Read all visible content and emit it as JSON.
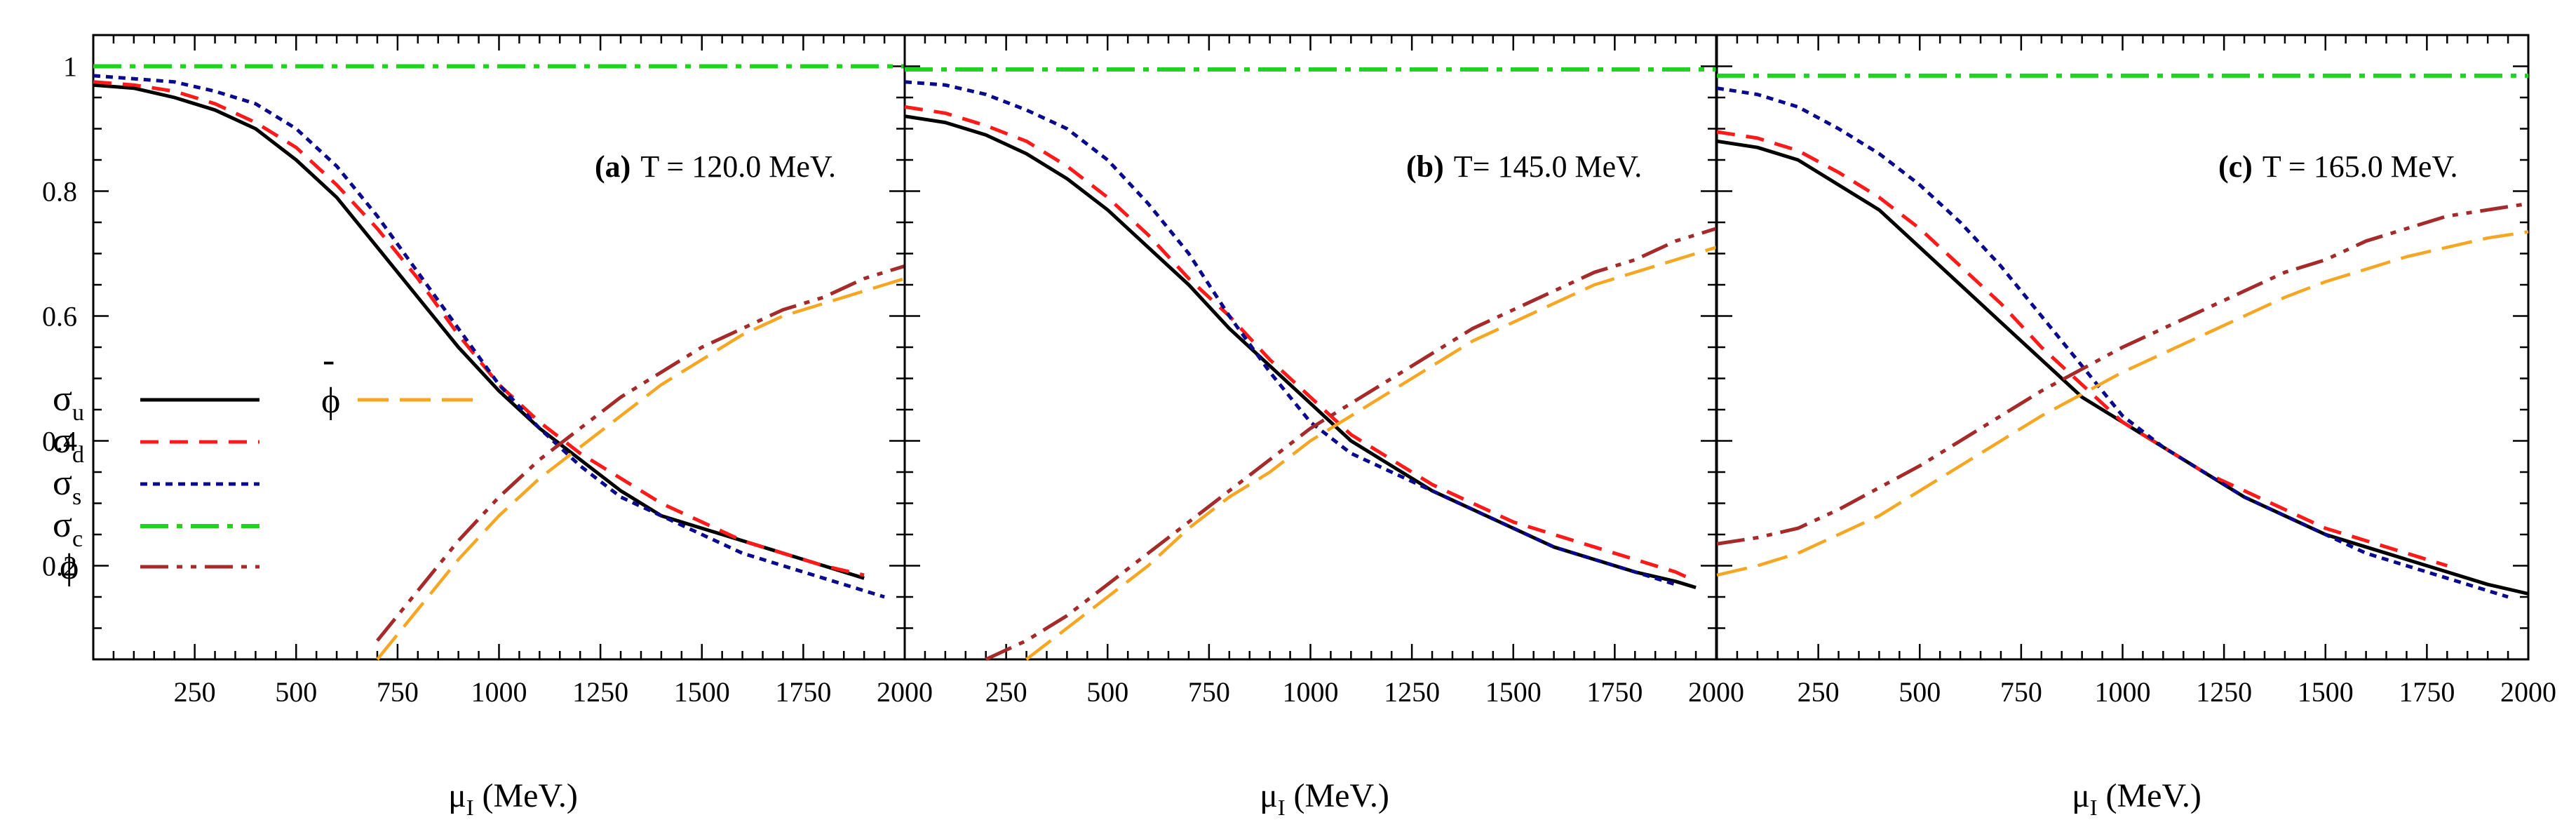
{
  "chart_data": [
    {
      "type": "line",
      "panel": "a",
      "annotation_bold": "(a)",
      "annotation_text": "T = 120.0 MeV.",
      "xlabel": "μ",
      "xlabel_sub": "I",
      "xlabel_unit": " (MeV.)",
      "xlim": [
        0,
        2000
      ],
      "ylim": [
        0.05,
        1.05
      ],
      "xticks": [
        250,
        500,
        750,
        1000,
        1250,
        1500,
        1750,
        2000
      ],
      "xtick_labels": [
        "250",
        "500",
        "750",
        "1000",
        "1250",
        "1500",
        "1750",
        "2000"
      ],
      "yticks": [
        0.2,
        0.4,
        0.6,
        0.8,
        1.0
      ],
      "ytick_labels": [
        "0.2",
        "0.4",
        "0.6",
        "0.8",
        "1"
      ],
      "series": [
        {
          "key": "sigma_u",
          "x": [
            0,
            100,
            200,
            300,
            400,
            500,
            600,
            700,
            800,
            900,
            1000,
            1100,
            1200,
            1300,
            1400,
            1500,
            1600,
            1700,
            1800,
            1900
          ],
          "y": [
            0.97,
            0.965,
            0.95,
            0.93,
            0.9,
            0.85,
            0.79,
            0.71,
            0.63,
            0.55,
            0.48,
            0.42,
            0.37,
            0.32,
            0.28,
            0.26,
            0.24,
            0.22,
            0.2,
            0.18
          ]
        },
        {
          "key": "sigma_d",
          "x": [
            0,
            100,
            200,
            300,
            400,
            500,
            600,
            700,
            800,
            900,
            1000,
            1100,
            1200,
            1300,
            1400,
            1500,
            1600,
            1700,
            1800,
            1900
          ],
          "y": [
            0.975,
            0.97,
            0.96,
            0.94,
            0.91,
            0.87,
            0.81,
            0.74,
            0.66,
            0.57,
            0.49,
            0.43,
            0.38,
            0.34,
            0.3,
            0.27,
            0.24,
            0.22,
            0.2,
            0.185
          ]
        },
        {
          "key": "sigma_s",
          "x": [
            0,
            100,
            200,
            300,
            400,
            500,
            600,
            700,
            800,
            900,
            1000,
            1100,
            1200,
            1300,
            1400,
            1500,
            1600,
            1700,
            1800,
            1900,
            1950
          ],
          "y": [
            0.985,
            0.98,
            0.975,
            0.96,
            0.94,
            0.9,
            0.84,
            0.76,
            0.67,
            0.58,
            0.49,
            0.42,
            0.36,
            0.31,
            0.28,
            0.25,
            0.22,
            0.2,
            0.18,
            0.16,
            0.15
          ]
        },
        {
          "key": "sigma_c",
          "x": [
            0,
            2000
          ],
          "y": [
            1.0,
            1.0
          ]
        },
        {
          "key": "phi",
          "x": [
            700,
            800,
            900,
            1000,
            1100,
            1200,
            1300,
            1400,
            1500,
            1600,
            1700,
            1800,
            1900,
            2000
          ],
          "y": [
            0.08,
            0.16,
            0.24,
            0.31,
            0.37,
            0.42,
            0.47,
            0.51,
            0.55,
            0.58,
            0.61,
            0.63,
            0.66,
            0.68
          ]
        },
        {
          "key": "phibar",
          "x": [
            700,
            800,
            900,
            1000,
            1100,
            1200,
            1300,
            1400,
            1500,
            1600,
            1700,
            1800,
            1900,
            2000
          ],
          "y": [
            0.05,
            0.13,
            0.21,
            0.28,
            0.34,
            0.39,
            0.44,
            0.49,
            0.53,
            0.57,
            0.6,
            0.62,
            0.64,
            0.66
          ]
        }
      ]
    },
    {
      "type": "line",
      "panel": "b",
      "annotation_bold": "(b)",
      "annotation_text": "T= 145.0 MeV.",
      "xlabel": "μ",
      "xlabel_sub": "I",
      "xlabel_unit": " (MeV.)",
      "xlim": [
        0,
        2000
      ],
      "ylim": [
        0.05,
        1.05
      ],
      "xticks": [
        250,
        500,
        750,
        1000,
        1250,
        1500,
        1750,
        2000
      ],
      "xtick_labels": [
        "250",
        "500",
        "750",
        "1000",
        "1250",
        "1500",
        "1750",
        "2000"
      ],
      "yticks": [
        0.2,
        0.4,
        0.6,
        0.8,
        1.0
      ],
      "series": [
        {
          "key": "sigma_u",
          "x": [
            0,
            100,
            200,
            300,
            400,
            500,
            600,
            700,
            800,
            900,
            1000,
            1100,
            1200,
            1300,
            1400,
            1500,
            1600,
            1700,
            1800,
            1900,
            1950
          ],
          "y": [
            0.92,
            0.91,
            0.89,
            0.86,
            0.82,
            0.77,
            0.71,
            0.65,
            0.58,
            0.52,
            0.46,
            0.4,
            0.36,
            0.32,
            0.29,
            0.26,
            0.23,
            0.21,
            0.19,
            0.175,
            0.165
          ]
        },
        {
          "key": "sigma_d",
          "x": [
            0,
            100,
            200,
            300,
            400,
            500,
            600,
            700,
            800,
            900,
            1000,
            1100,
            1200,
            1300,
            1400,
            1500,
            1600,
            1700,
            1800,
            1900,
            1950
          ],
          "y": [
            0.935,
            0.925,
            0.905,
            0.88,
            0.84,
            0.79,
            0.73,
            0.66,
            0.6,
            0.53,
            0.47,
            0.41,
            0.37,
            0.33,
            0.3,
            0.27,
            0.25,
            0.23,
            0.21,
            0.19,
            0.175
          ]
        },
        {
          "key": "sigma_s",
          "x": [
            0,
            100,
            200,
            300,
            400,
            500,
            600,
            700,
            800,
            900,
            1000,
            1100,
            1200,
            1300,
            1400,
            1500,
            1600,
            1700,
            1800,
            1900
          ],
          "y": [
            0.975,
            0.97,
            0.955,
            0.93,
            0.9,
            0.85,
            0.78,
            0.7,
            0.6,
            0.51,
            0.43,
            0.38,
            0.35,
            0.32,
            0.29,
            0.26,
            0.23,
            0.21,
            0.19,
            0.17
          ]
        },
        {
          "key": "sigma_c",
          "x": [
            0,
            2000
          ],
          "y": [
            0.995,
            0.995
          ]
        },
        {
          "key": "phi",
          "x": [
            200,
            300,
            400,
            500,
            600,
            700,
            800,
            900,
            1000,
            1100,
            1200,
            1300,
            1400,
            1500,
            1600,
            1700,
            1800,
            1900,
            2000
          ],
          "y": [
            0.05,
            0.08,
            0.12,
            0.17,
            0.22,
            0.27,
            0.32,
            0.37,
            0.42,
            0.46,
            0.5,
            0.54,
            0.58,
            0.61,
            0.64,
            0.67,
            0.69,
            0.72,
            0.74
          ]
        },
        {
          "key": "phibar",
          "x": [
            300,
            400,
            500,
            600,
            700,
            800,
            900,
            1000,
            1100,
            1200,
            1300,
            1400,
            1500,
            1600,
            1700,
            1800,
            1900,
            2000
          ],
          "y": [
            0.05,
            0.1,
            0.15,
            0.2,
            0.26,
            0.31,
            0.35,
            0.4,
            0.44,
            0.48,
            0.52,
            0.56,
            0.59,
            0.62,
            0.65,
            0.67,
            0.69,
            0.71
          ]
        }
      ]
    },
    {
      "type": "line",
      "panel": "c",
      "annotation_bold": "(c)",
      "annotation_text": "T = 165.0 MeV.",
      "xlabel": "μ",
      "xlabel_sub": "I",
      "xlabel_unit": " (MeV.)",
      "xlim": [
        0,
        2000
      ],
      "ylim": [
        0.05,
        1.05
      ],
      "xticks": [
        250,
        500,
        750,
        1000,
        1250,
        1500,
        1750,
        2000
      ],
      "xtick_labels": [
        "250",
        "500",
        "750",
        "1000",
        "1250",
        "1500",
        "1750",
        "2000"
      ],
      "yticks": [
        0.2,
        0.4,
        0.6,
        0.8,
        1.0
      ],
      "series": [
        {
          "key": "sigma_u",
          "x": [
            0,
            100,
            200,
            300,
            400,
            500,
            600,
            700,
            800,
            900,
            1000,
            1100,
            1200,
            1300,
            1400,
            1500,
            1600,
            1700,
            1800,
            1900,
            2000
          ],
          "y": [
            0.88,
            0.87,
            0.85,
            0.81,
            0.77,
            0.71,
            0.65,
            0.59,
            0.53,
            0.47,
            0.43,
            0.39,
            0.35,
            0.31,
            0.28,
            0.25,
            0.23,
            0.21,
            0.19,
            0.17,
            0.155
          ]
        },
        {
          "key": "sigma_d",
          "x": [
            0,
            100,
            200,
            300,
            400,
            500,
            600,
            700,
            800,
            900,
            1000,
            1100,
            1200,
            1300,
            1400,
            1500,
            1600,
            1700,
            1800
          ],
          "y": [
            0.895,
            0.885,
            0.865,
            0.83,
            0.79,
            0.74,
            0.68,
            0.62,
            0.55,
            0.49,
            0.43,
            0.39,
            0.35,
            0.32,
            0.29,
            0.26,
            0.24,
            0.22,
            0.2
          ]
        },
        {
          "key": "sigma_s",
          "x": [
            0,
            100,
            200,
            300,
            400,
            500,
            600,
            700,
            800,
            900,
            1000,
            1100,
            1200,
            1300,
            1400,
            1500,
            1600,
            1700,
            1800,
            1900,
            1950
          ],
          "y": [
            0.965,
            0.955,
            0.935,
            0.9,
            0.86,
            0.81,
            0.75,
            0.68,
            0.6,
            0.52,
            0.44,
            0.39,
            0.35,
            0.31,
            0.28,
            0.25,
            0.22,
            0.2,
            0.18,
            0.16,
            0.15
          ]
        },
        {
          "key": "sigma_c",
          "x": [
            0,
            2000
          ],
          "y": [
            0.985,
            0.985
          ]
        },
        {
          "key": "phi",
          "x": [
            0,
            100,
            200,
            300,
            400,
            500,
            600,
            700,
            800,
            900,
            1000,
            1100,
            1200,
            1300,
            1400,
            1500,
            1600,
            1700,
            1800,
            1900,
            2000
          ],
          "y": [
            0.235,
            0.245,
            0.26,
            0.29,
            0.325,
            0.36,
            0.4,
            0.44,
            0.48,
            0.515,
            0.55,
            0.58,
            0.61,
            0.64,
            0.67,
            0.69,
            0.72,
            0.74,
            0.76,
            0.77,
            0.78
          ]
        },
        {
          "key": "phibar",
          "x": [
            0,
            100,
            200,
            300,
            400,
            500,
            600,
            700,
            800,
            900,
            1000,
            1100,
            1200,
            1300,
            1400,
            1500,
            1600,
            1700,
            1800,
            1900,
            2000
          ],
          "y": [
            0.185,
            0.2,
            0.22,
            0.25,
            0.28,
            0.32,
            0.36,
            0.4,
            0.44,
            0.475,
            0.51,
            0.54,
            0.57,
            0.6,
            0.63,
            0.655,
            0.675,
            0.695,
            0.71,
            0.725,
            0.735
          ]
        }
      ]
    }
  ],
  "legend": {
    "items": [
      {
        "key": "sigma_u",
        "symbol": "σ",
        "sub": "u",
        "color": "#000000",
        "dash": ""
      },
      {
        "key": "sigma_d",
        "symbol": "σ",
        "sub": "d",
        "color": "#ff1a1a",
        "dash": "26,16"
      },
      {
        "key": "sigma_s",
        "symbol": "σ",
        "sub": "s",
        "color": "#0a0a8c",
        "dash": "10,8"
      },
      {
        "key": "sigma_c",
        "symbol": "σ",
        "sub": "c",
        "color": "#1fd41f",
        "dash": "40,12,8,12"
      },
      {
        "key": "phi",
        "symbol": "ϕ",
        "sub": "",
        "color": "#a52a2a",
        "dash": "40,12,8,12,8,12"
      },
      {
        "key": "phibar",
        "symbol": "ϕ",
        "sub": "",
        "bar": "-",
        "color": "#f5a623",
        "dash": "44,16"
      }
    ]
  },
  "style": {
    "colors": {
      "sigma_u": "#000000",
      "sigma_d": "#ff1a1a",
      "sigma_s": "#0a0a8c",
      "sigma_c": "#1fd41f",
      "phi": "#a52a2a",
      "phibar": "#f5a623"
    }
  }
}
